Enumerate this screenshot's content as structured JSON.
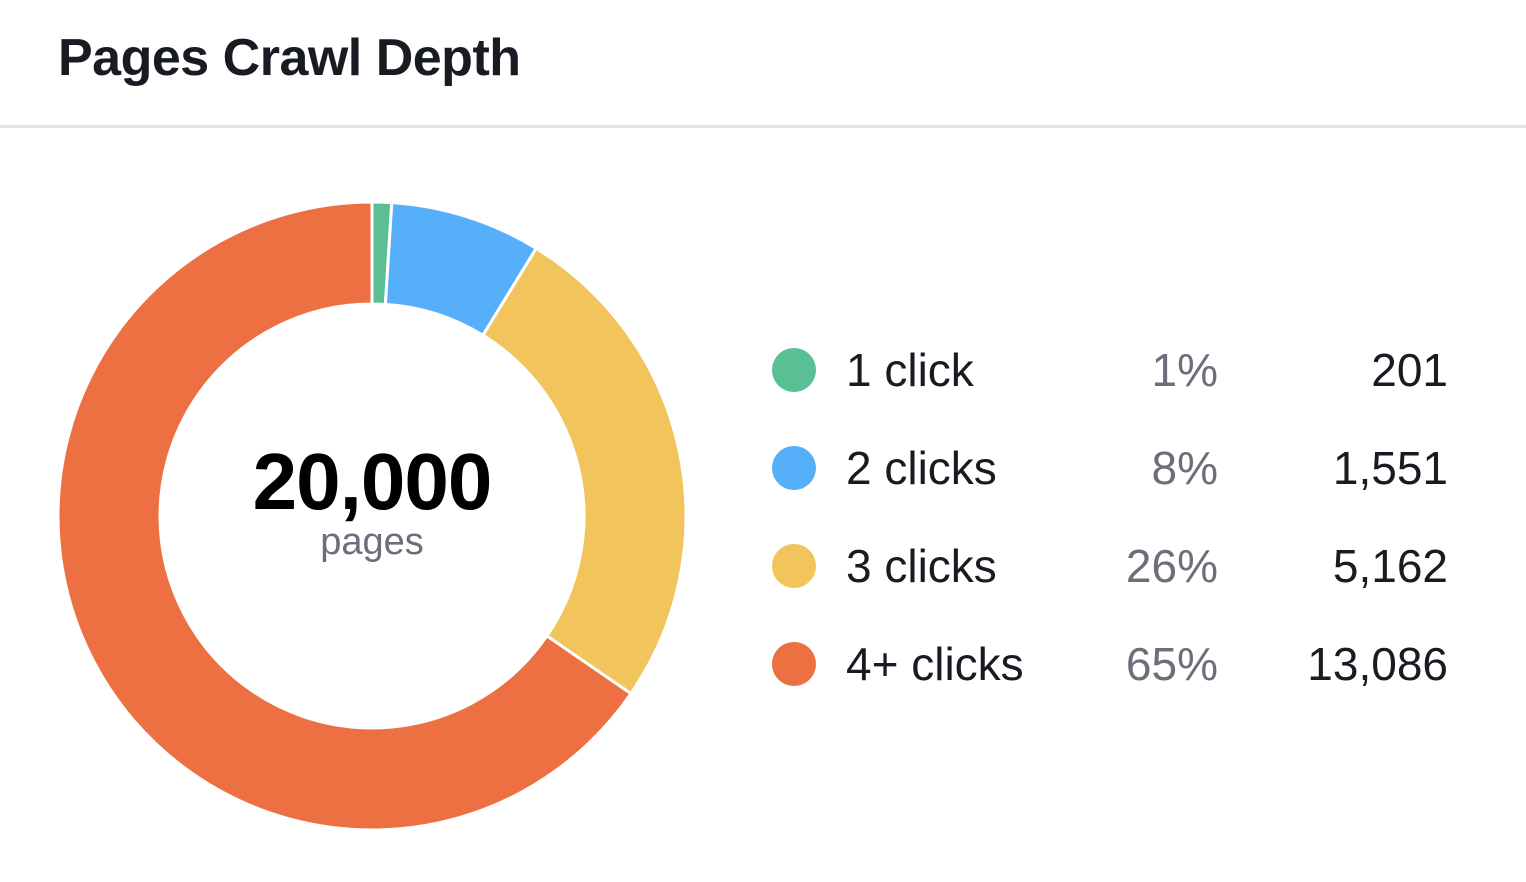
{
  "widget": {
    "title": "Pages Crawl Depth",
    "center_total": "20,000",
    "center_label": "pages"
  },
  "legend": [
    {
      "label": "1 click",
      "percent": "1%",
      "value": "201",
      "color": "#5bbf96"
    },
    {
      "label": "2 clicks",
      "percent": "8%",
      "value": "1,551",
      "color": "#56b0f9"
    },
    {
      "label": "3 clicks",
      "percent": "26%",
      "value": "5,162",
      "color": "#f2c45c"
    },
    {
      "label": "4+ clicks",
      "percent": "65%",
      "value": "13,086",
      "color": "#ec7042"
    }
  ],
  "chart_data": {
    "type": "pie",
    "variant": "donut",
    "title": "Pages Crawl Depth",
    "center_text": "20,000 pages",
    "total": 20000,
    "categories": [
      "1 click",
      "2 clicks",
      "3 clicks",
      "4+ clicks"
    ],
    "values": [
      201,
      1551,
      5162,
      13086
    ],
    "percentages": [
      1,
      8,
      26,
      65
    ],
    "colors": [
      "#5bbf96",
      "#56b0f9",
      "#f2c45c",
      "#ec7042"
    ],
    "legend_position": "right",
    "start_angle": "12 o'clock, clockwise"
  }
}
